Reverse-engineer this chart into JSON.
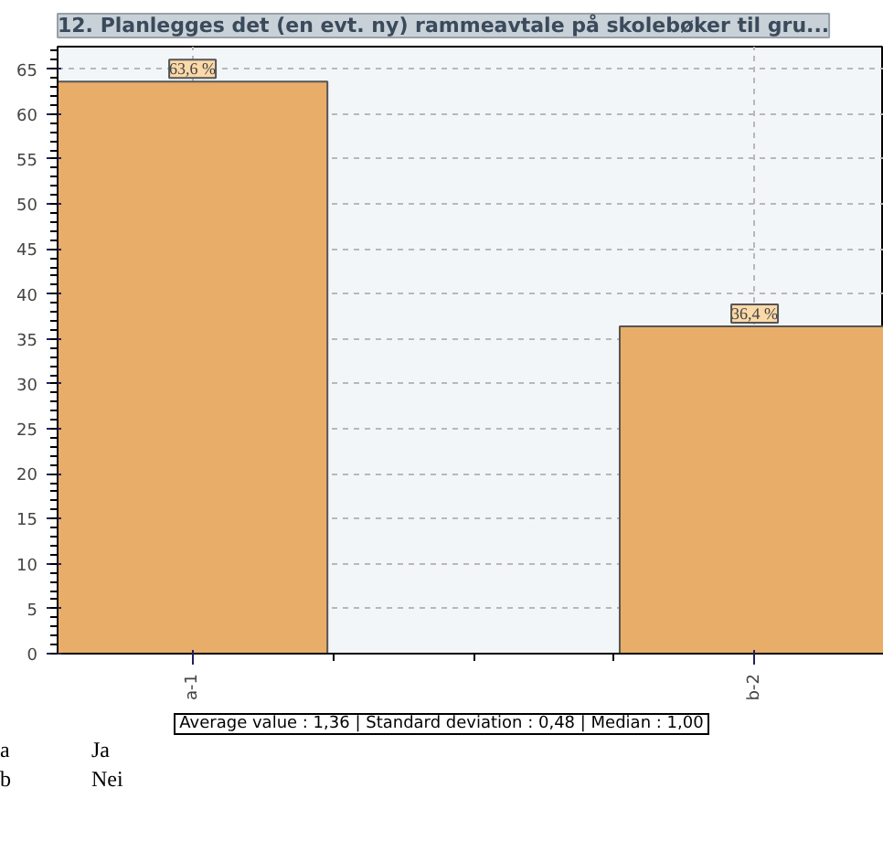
{
  "chart_data": {
    "type": "bar",
    "title": "12. Planlegges det (en evt. ny) rammeavtale på skolebøker til gru...",
    "categories": [
      "a-1",
      "b-2"
    ],
    "values": [
      63.6,
      36.4
    ],
    "value_labels": [
      "63,6 %",
      "36,4 %"
    ],
    "color": "#e8ad68",
    "ylim": [
      0,
      67.5
    ],
    "yticks": [
      0,
      5,
      10,
      15,
      20,
      25,
      30,
      35,
      40,
      45,
      50,
      55,
      60,
      65
    ],
    "grid": true,
    "annotations": [
      "Average value : 1,36 | Standard deviation : 0,48 | Median : 1,00",
      "a\tJa",
      "b\tNei"
    ]
  }
}
